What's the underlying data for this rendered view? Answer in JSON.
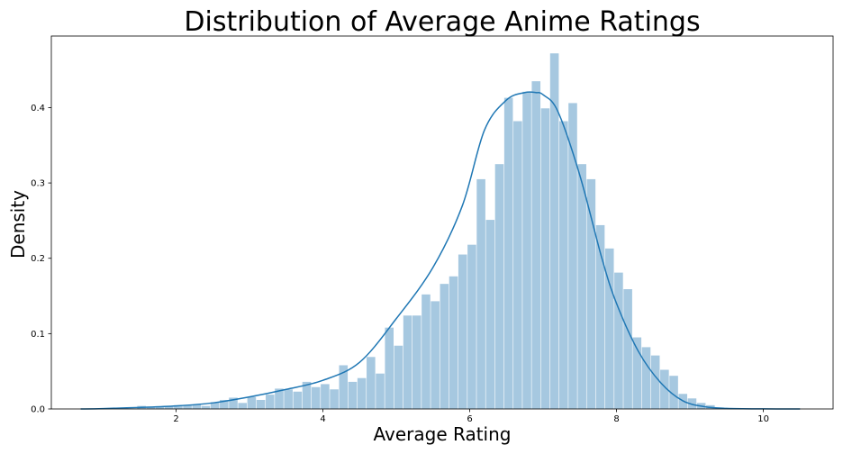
{
  "chart_data": {
    "type": "bar",
    "title": "Distribution of Average Anime Ratings",
    "xlabel": "Average Rating",
    "ylabel": "Density",
    "xlim": [
      0.3,
      10.95
    ],
    "ylim": [
      0.0,
      0.495
    ],
    "xticks": [
      2,
      4,
      6,
      8,
      10
    ],
    "yticks": [
      0.0,
      0.1,
      0.2,
      0.3,
      0.4
    ],
    "bin_start": 1.47,
    "bin_width": 0.125,
    "series": [
      {
        "kind": "histogram",
        "color": "#a6c8e0",
        "values": [
          0.004,
          0.003,
          0.003,
          0.004,
          0.005,
          0.005,
          0.006,
          0.004,
          0.009,
          0.012,
          0.015,
          0.008,
          0.016,
          0.012,
          0.019,
          0.027,
          0.026,
          0.023,
          0.036,
          0.029,
          0.033,
          0.026,
          0.058,
          0.036,
          0.041,
          0.069,
          0.047,
          0.108,
          0.084,
          0.124,
          0.124,
          0.152,
          0.143,
          0.166,
          0.176,
          0.205,
          0.218,
          0.305,
          0.251,
          0.325,
          0.413,
          0.382,
          0.421,
          0.435,
          0.399,
          0.472,
          0.382,
          0.406,
          0.325,
          0.305,
          0.244,
          0.213,
          0.181,
          0.159,
          0.095,
          0.082,
          0.071,
          0.052,
          0.044,
          0.02,
          0.014,
          0.008,
          0.005,
          0.002
        ]
      },
      {
        "kind": "kde",
        "color": "#1f77b4",
        "x": [
          0.7,
          1.0,
          1.5,
          2.0,
          2.5,
          3.0,
          3.5,
          4.0,
          4.5,
          5.0,
          5.5,
          5.9,
          6.2,
          6.5,
          6.75,
          6.9,
          7.0,
          7.2,
          7.5,
          7.8,
          8.0,
          8.3,
          8.6,
          8.9,
          9.2,
          9.5,
          10.0,
          10.5
        ],
        "y": [
          0.0,
          0.0005,
          0.002,
          0.004,
          0.008,
          0.016,
          0.026,
          0.038,
          0.062,
          0.12,
          0.188,
          0.27,
          0.37,
          0.41,
          0.42,
          0.42,
          0.417,
          0.395,
          0.31,
          0.2,
          0.14,
          0.076,
          0.035,
          0.011,
          0.003,
          0.0008,
          0.0001,
          0.0
        ]
      }
    ]
  }
}
